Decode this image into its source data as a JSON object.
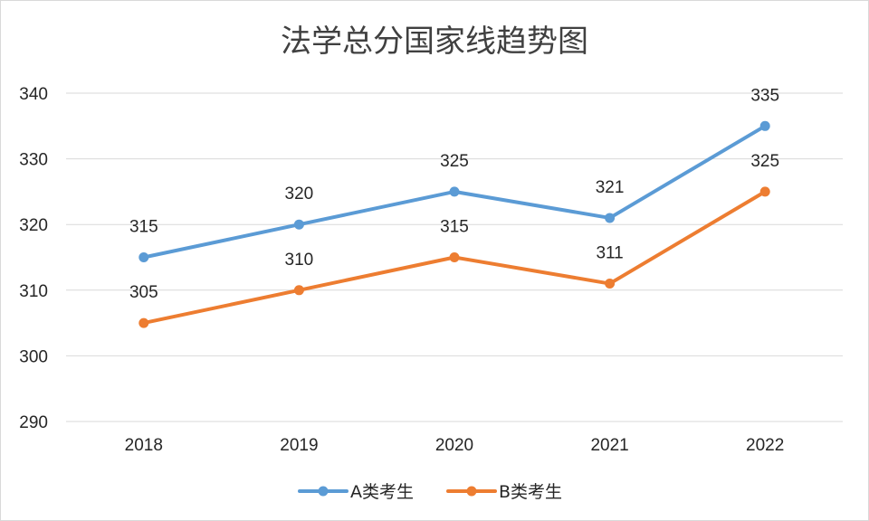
{
  "chart_data": {
    "type": "line",
    "title": "法学总分国家线趋势图",
    "categories": [
      "2018",
      "2019",
      "2020",
      "2021",
      "2022"
    ],
    "ylim": [
      290,
      340
    ],
    "yticks": [
      290,
      300,
      310,
      320,
      330,
      340
    ],
    "grid": true,
    "legend_position": "bottom",
    "series": [
      {
        "name": "A类考生",
        "color": "#5b9bd5",
        "values": [
          315,
          320,
          325,
          321,
          335
        ]
      },
      {
        "name": "B类考生",
        "color": "#ed7d31",
        "values": [
          305,
          310,
          315,
          311,
          325
        ]
      }
    ]
  }
}
